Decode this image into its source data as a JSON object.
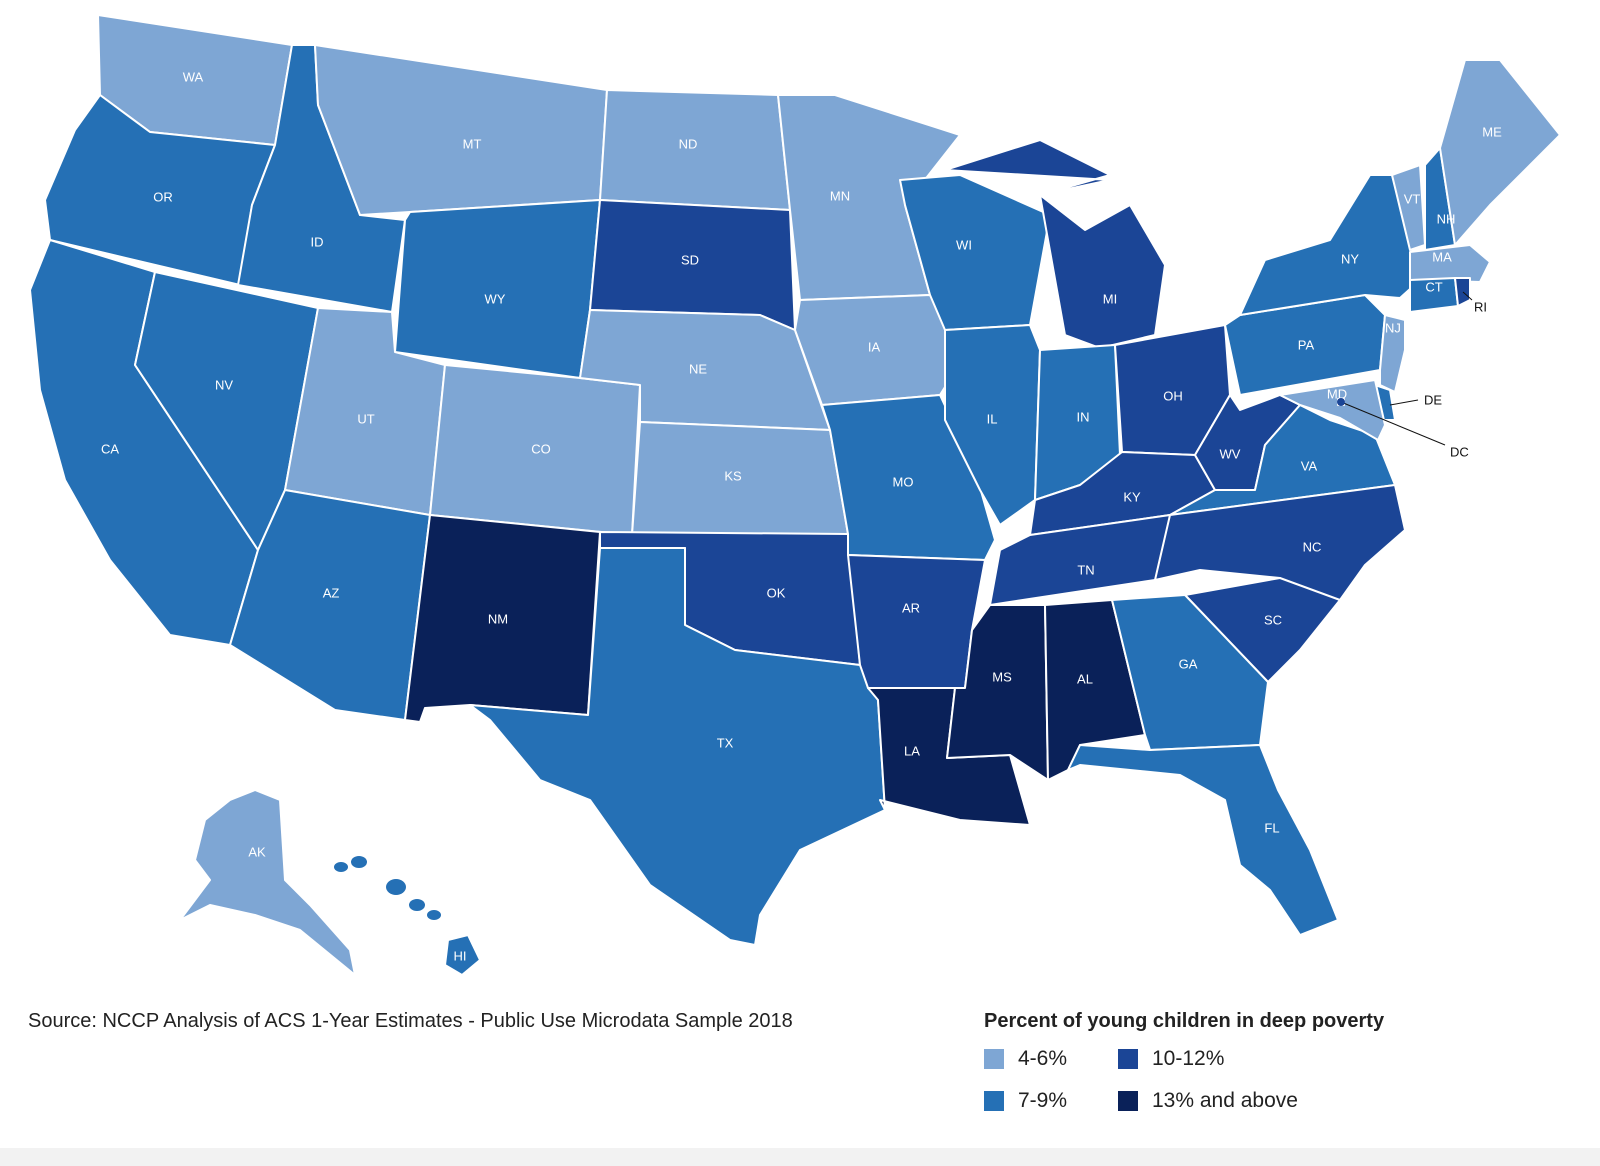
{
  "colors": {
    "c1": "#7ea6d4",
    "c2": "#2570b5",
    "c3": "#1b4596",
    "c4": "#0a2159",
    "border": "#ffffff",
    "text": "#222222"
  },
  "map": {
    "states": [
      {
        "abbr": "WA",
        "category": "4-6%"
      },
      {
        "abbr": "OR",
        "category": "7-9%"
      },
      {
        "abbr": "CA",
        "category": "7-9%"
      },
      {
        "abbr": "ID",
        "category": "7-9%"
      },
      {
        "abbr": "NV",
        "category": "7-9%"
      },
      {
        "abbr": "MT",
        "category": "4-6%"
      },
      {
        "abbr": "WY",
        "category": "7-9%"
      },
      {
        "abbr": "UT",
        "category": "4-6%"
      },
      {
        "abbr": "AZ",
        "category": "7-9%"
      },
      {
        "abbr": "CO",
        "category": "4-6%"
      },
      {
        "abbr": "NM",
        "category": "13% and above"
      },
      {
        "abbr": "ND",
        "category": "4-6%"
      },
      {
        "abbr": "SD",
        "category": "10-12%"
      },
      {
        "abbr": "NE",
        "category": "4-6%"
      },
      {
        "abbr": "KS",
        "category": "4-6%"
      },
      {
        "abbr": "OK",
        "category": "10-12%"
      },
      {
        "abbr": "TX",
        "category": "7-9%"
      },
      {
        "abbr": "MN",
        "category": "4-6%"
      },
      {
        "abbr": "IA",
        "category": "4-6%"
      },
      {
        "abbr": "MO",
        "category": "7-9%"
      },
      {
        "abbr": "AR",
        "category": "10-12%"
      },
      {
        "abbr": "LA",
        "category": "13% and above"
      },
      {
        "abbr": "WI",
        "category": "7-9%"
      },
      {
        "abbr": "IL",
        "category": "7-9%"
      },
      {
        "abbr": "MI",
        "category": "10-12%"
      },
      {
        "abbr": "IN",
        "category": "7-9%"
      },
      {
        "abbr": "OH",
        "category": "10-12%"
      },
      {
        "abbr": "KY",
        "category": "10-12%"
      },
      {
        "abbr": "TN",
        "category": "10-12%"
      },
      {
        "abbr": "MS",
        "category": "13% and above"
      },
      {
        "abbr": "AL",
        "category": "13% and above"
      },
      {
        "abbr": "WV",
        "category": "10-12%"
      },
      {
        "abbr": "VA",
        "category": "7-9%"
      },
      {
        "abbr": "NC",
        "category": "10-12%"
      },
      {
        "abbr": "SC",
        "category": "10-12%"
      },
      {
        "abbr": "GA",
        "category": "7-9%"
      },
      {
        "abbr": "FL",
        "category": "7-9%"
      },
      {
        "abbr": "PA",
        "category": "7-9%"
      },
      {
        "abbr": "NY",
        "category": "7-9%"
      },
      {
        "abbr": "VT",
        "category": "4-6%"
      },
      {
        "abbr": "NH",
        "category": "7-9%"
      },
      {
        "abbr": "ME",
        "category": "4-6%"
      },
      {
        "abbr": "MA",
        "category": "4-6%"
      },
      {
        "abbr": "CT",
        "category": "7-9%"
      },
      {
        "abbr": "RI",
        "category": "10-12%"
      },
      {
        "abbr": "NJ",
        "category": "4-6%"
      },
      {
        "abbr": "DE",
        "category": "7-9%"
      },
      {
        "abbr": "MD",
        "category": "4-6%"
      },
      {
        "abbr": "DC",
        "category": "10-12%"
      },
      {
        "abbr": "AK",
        "category": "4-6%"
      },
      {
        "abbr": "HI",
        "category": "7-9%"
      }
    ]
  },
  "source_note": "Source: NCCP Analysis of ACS 1-Year Estimates - Public Use Microdata Sample 2018",
  "legend": {
    "title": "Percent of young children in deep poverty",
    "items": [
      {
        "label": "4-6%",
        "color": "#7ea6d4"
      },
      {
        "label": "7-9%",
        "color": "#2570b5"
      },
      {
        "label": "10-12%",
        "color": "#1b4596"
      },
      {
        "label": "13% and above",
        "color": "#0a2159"
      }
    ]
  }
}
